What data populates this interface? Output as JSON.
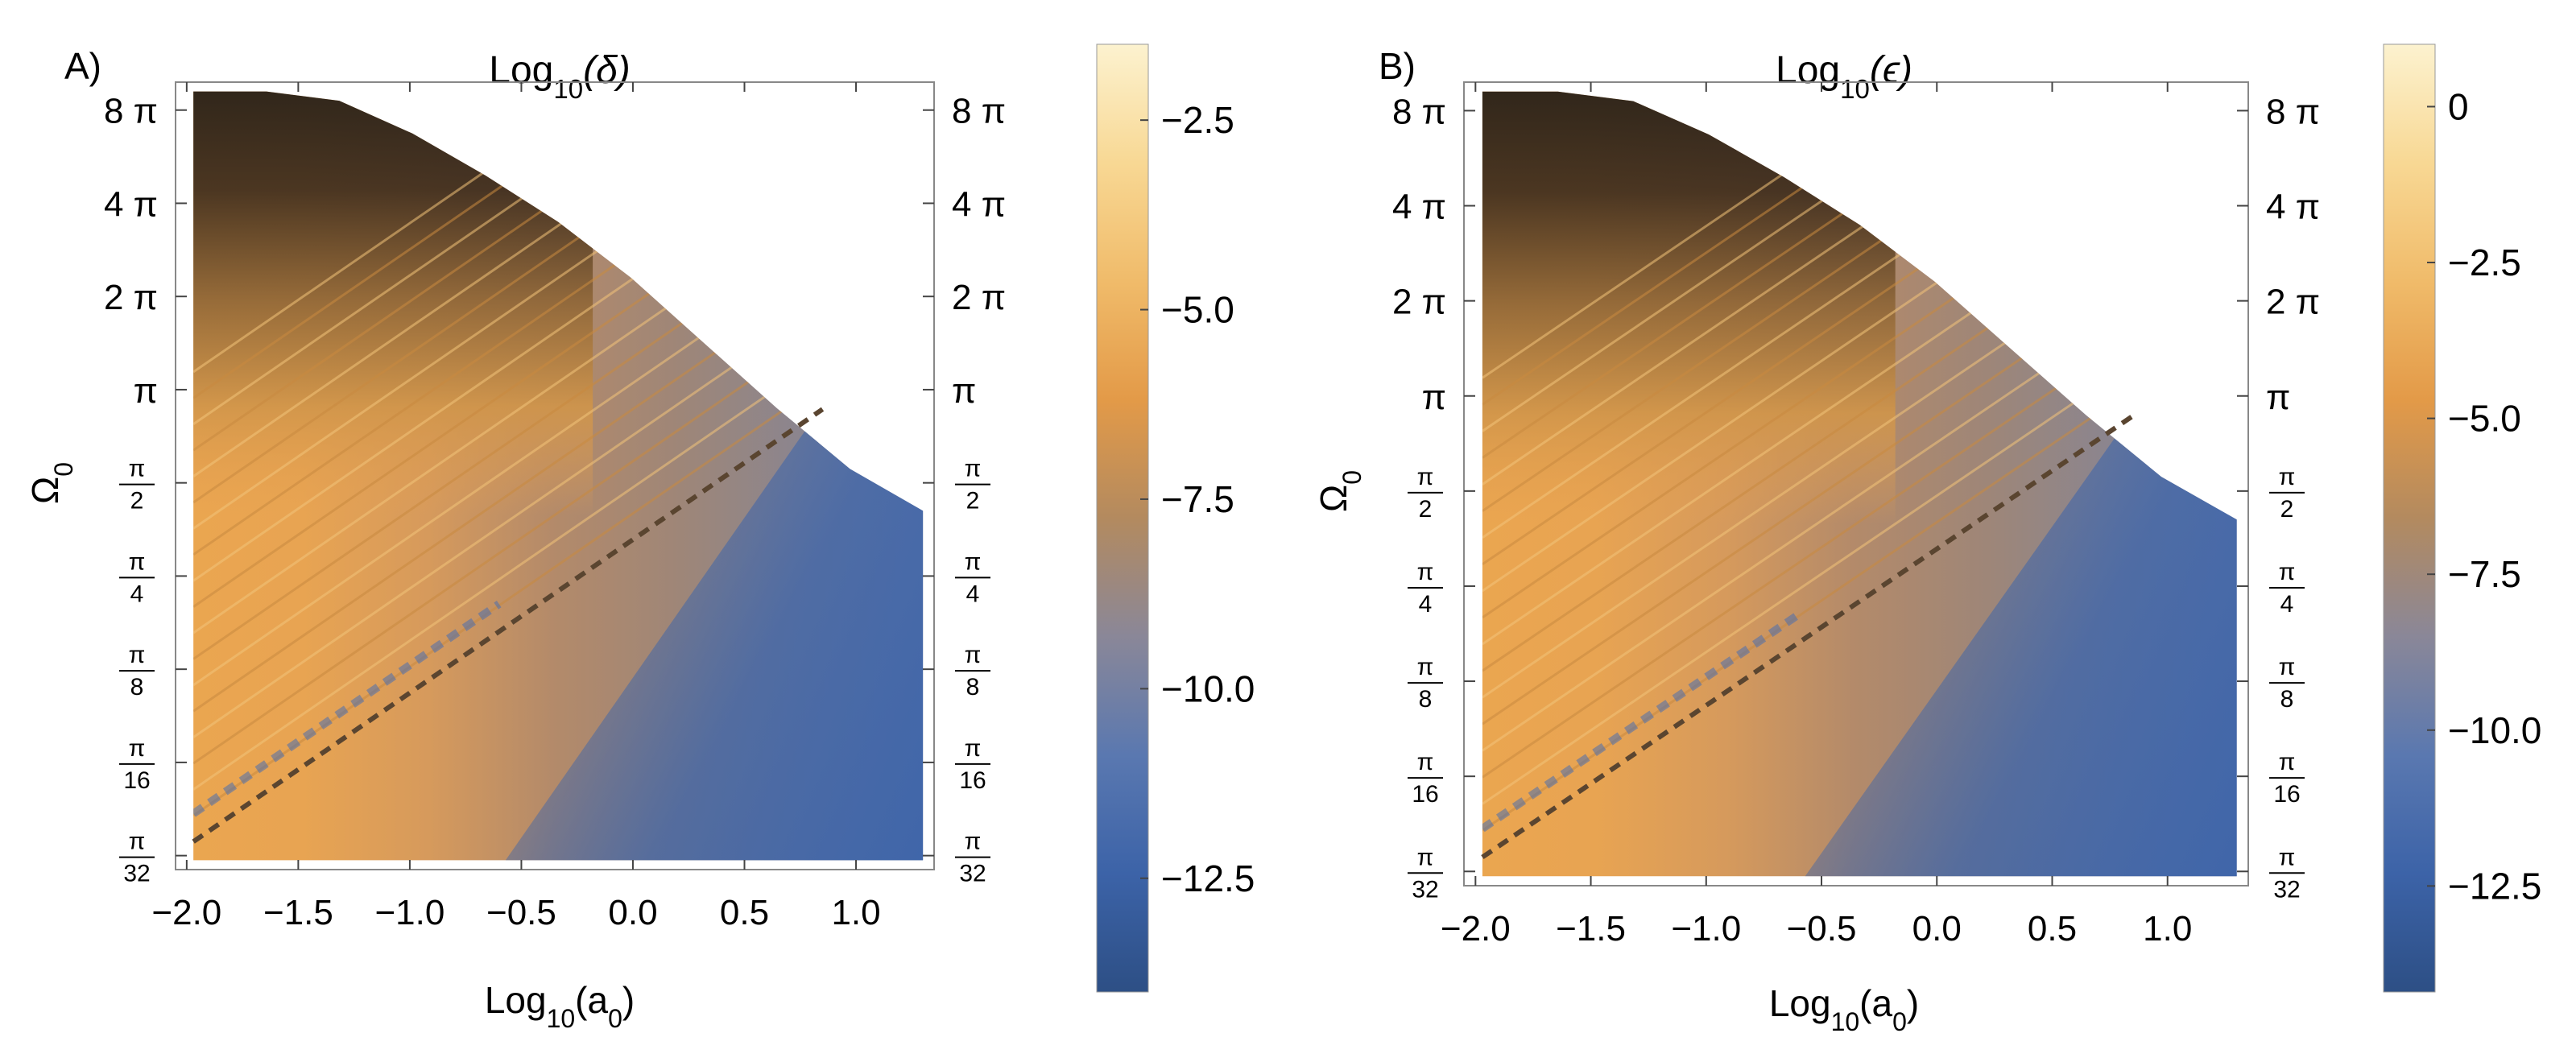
{
  "colors": {
    "colormap": [
      "#2d4f85",
      "#3c63a8",
      "#5a78b0",
      "#8a8798",
      "#b38a5f",
      "#e39a48",
      "#f0bb6a",
      "#f8d894",
      "#fcf2cf"
    ],
    "dashed_line": "#5a4530",
    "frame": "#888888"
  },
  "chart_data": [
    {
      "type": "heatmap",
      "panel": "A)",
      "title_prefix": "Log",
      "title_sub": "10",
      "title_arg": "(δ)",
      "xlabel_prefix": "Log",
      "xlabel_sub": "10",
      "xlabel_arg": "(a",
      "xlabel_argsub": "0",
      "xlabel_close": ")",
      "ylabel": "Ω",
      "ylabel_sub": "0",
      "xlim": [
        -2.05,
        1.35
      ],
      "x_ticks": [
        -2.0,
        -1.5,
        -1.0,
        -0.5,
        0.0,
        0.5,
        1.0
      ],
      "x_tick_labels": [
        "−2.0",
        "−1.5",
        "−1.0",
        "−0.5",
        "0.0",
        "0.5",
        "1.0"
      ],
      "y_ticks_log2_pi": [
        -5,
        -4,
        -3,
        -2,
        -1,
        0,
        1,
        2,
        3
      ],
      "y_tick_labels": [
        "π/32",
        "π/16",
        "π/8",
        "π/4",
        "π/2",
        "π",
        "2 π",
        "4 π",
        "8 π"
      ],
      "ylim_log2_pi": [
        -5.15,
        3.3
      ],
      "colorbar_range": [
        -14.0,
        -1.5
      ],
      "colorbar_ticks": [
        -12.5,
        -10.0,
        -7.5,
        -5.0,
        -2.5
      ],
      "colorbar_tick_labels": [
        "−12.5",
        "−10.0",
        "−7.5",
        "−5.0",
        "−2.5"
      ],
      "dashed_line": {
        "x": [
          -1.97,
          0.85
        ],
        "y_log2_pi": [
          -4.85,
          -0.21
        ]
      },
      "region_right_edge_x": 1.3,
      "domain_boundary_top_log2_pi": [
        3.2,
        3.2,
        3.1,
        2.75,
        2.3,
        1.8,
        1.2,
        0.5,
        -0.2,
        -0.85,
        -1.3
      ]
    },
    {
      "type": "heatmap",
      "panel": "B)",
      "title_prefix": "Log",
      "title_sub": "10",
      "title_arg": "(ϵ)",
      "xlabel_prefix": "Log",
      "xlabel_sub": "10",
      "xlabel_arg": "(a",
      "xlabel_argsub": "0",
      "xlabel_close": ")",
      "ylabel": "Ω",
      "ylabel_sub": "0",
      "xlim": [
        -2.05,
        1.35
      ],
      "x_ticks": [
        -2.0,
        -1.5,
        -1.0,
        -0.5,
        0.0,
        0.5,
        1.0
      ],
      "x_tick_labels": [
        "−2.0",
        "−1.5",
        "−1.0",
        "−0.5",
        "0.0",
        "0.5",
        "1.0"
      ],
      "y_ticks_log2_pi": [
        -5,
        -4,
        -3,
        -2,
        -1,
        0,
        1,
        2,
        3
      ],
      "y_tick_labels": [
        "π/32",
        "π/16",
        "π/8",
        "π/4",
        "π/2",
        "π",
        "2 π",
        "4 π",
        "8 π"
      ],
      "ylim_log2_pi": [
        -5.15,
        3.3
      ],
      "colorbar_range": [
        -14.2,
        1.0
      ],
      "colorbar_ticks": [
        -12.5,
        -10.0,
        -7.5,
        -5.0,
        -2.5,
        0
      ],
      "colorbar_tick_labels": [
        "−12.5",
        "−10.0",
        "−7.5",
        "−5.0",
        "−2.5",
        "0"
      ],
      "dashed_line": {
        "x": [
          -1.97,
          0.85
        ],
        "y_log2_pi": [
          -4.85,
          -0.21
        ]
      },
      "region_right_edge_x": 1.3,
      "domain_boundary_top_log2_pi": [
        3.2,
        3.2,
        3.1,
        2.75,
        2.3,
        1.8,
        1.2,
        0.5,
        -0.2,
        -0.85,
        -1.3
      ]
    }
  ]
}
